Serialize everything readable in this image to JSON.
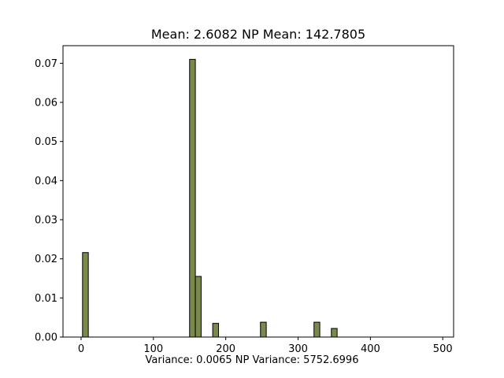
{
  "chart_data": {
    "type": "bar",
    "title": "Mean: 2.6082  NP Mean: 142.7805",
    "xlabel": "Variance: 0.0065  NP Variance: 5752.6996",
    "ylabel": "",
    "xlim": [
      -25,
      515
    ],
    "ylim": [
      0,
      0.0745
    ],
    "xticks": [
      0,
      100,
      200,
      300,
      400,
      500
    ],
    "yticks": [
      0.0,
      0.01,
      0.02,
      0.03,
      0.04,
      0.05,
      0.06,
      0.07
    ],
    "ytick_labels": [
      "0.00",
      "0.01",
      "0.02",
      "0.03",
      "0.04",
      "0.05",
      "0.06",
      "0.07"
    ],
    "bin_width": 8,
    "bar_color": "#7a8a4a",
    "edge_color": "#000000",
    "bars": [
      {
        "x": 6,
        "value": 0.0216
      },
      {
        "x": 154,
        "value": 0.071
      },
      {
        "x": 162,
        "value": 0.0155
      },
      {
        "x": 186,
        "value": 0.0035
      },
      {
        "x": 252,
        "value": 0.0038
      },
      {
        "x": 326,
        "value": 0.0038
      },
      {
        "x": 350,
        "value": 0.0022
      }
    ]
  }
}
